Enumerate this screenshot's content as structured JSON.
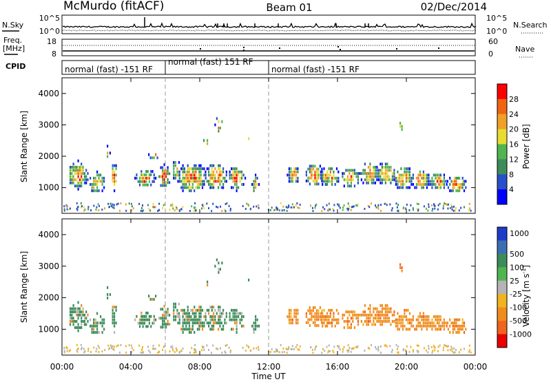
{
  "header": {
    "station": "McMurdo (fitACF)",
    "beam": "Beam 01",
    "date": "02/Dec/2014"
  },
  "top_panels": {
    "nsky_label": "N.Sky",
    "nsky_ticks": [
      "10^5",
      "10^0"
    ],
    "nsearch_label": "N.Search",
    "freq_label": "Freq.",
    "freq_unit": "[MHz]",
    "freq_ticks": [
      "18",
      "8"
    ],
    "nave_ticks": [
      "60",
      "0"
    ],
    "nave_label": "Nave",
    "cpid_label": "CPID",
    "cpid_segments": [
      "normal (fast) -151 RF",
      "normal (fast) 151 RF",
      "normal (fast) -151 RF"
    ]
  },
  "power_panel": {
    "ylabel": "Slant Range [km]",
    "yticks": [
      "4000",
      "3000",
      "2000",
      "1000"
    ],
    "colorbar_label": "Power [dB]",
    "colorbar_ticks": [
      "28",
      "24",
      "20",
      "16",
      "12",
      "8",
      "4"
    ],
    "colors": [
      "#0000ff",
      "#2850c8",
      "#3c8c5a",
      "#50b450",
      "#e6dc32",
      "#f0a028",
      "#f06414",
      "#ff0000"
    ]
  },
  "velocity_panel": {
    "ylabel": "Slant Range [km]",
    "yticks": [
      "4000",
      "3000",
      "2000",
      "1000"
    ],
    "colorbar_label": "Velocity [m s",
    "colorbar_label_sup": "-1",
    "colorbar_label_end": "]",
    "colorbar_ticks": [
      "1000",
      "500",
      "100",
      "25",
      "-25",
      "-100",
      "-500",
      "-1000"
    ],
    "colors": [
      "#1e3cc8",
      "#3c6eb4",
      "#3c8c5a",
      "#50b450",
      "#b4b4b4",
      "#f0b41e",
      "#f08c1e",
      "#f0641e",
      "#e60000"
    ]
  },
  "xaxis": {
    "ticks": [
      "00:00",
      "04:00",
      "08:00",
      "12:00",
      "16:00",
      "20:00",
      "00:00"
    ],
    "label": "Time UT"
  },
  "chart_data": {
    "type": "heatmap",
    "x_range_hours": [
      0,
      24
    ],
    "y_range_km": [
      180,
      4500
    ],
    "power_range_db": [
      0,
      32
    ],
    "velocity_range": [
      -1250,
      1250
    ],
    "cpid_change_hours": [
      6,
      12
    ]
  }
}
